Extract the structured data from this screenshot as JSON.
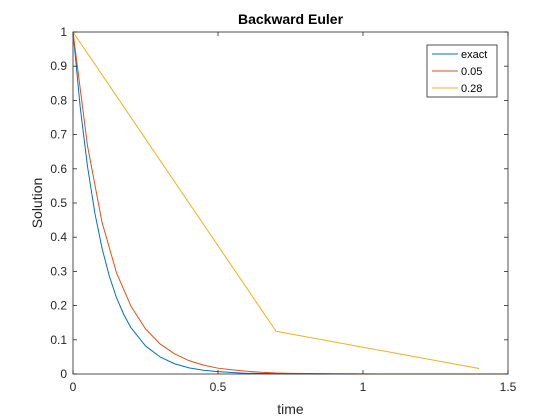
{
  "chart_data": {
    "type": "line",
    "title": "Backward Euler",
    "xlabel": "time",
    "ylabel": "Solution",
    "xlim": [
      0,
      1.5
    ],
    "ylim": [
      0,
      1
    ],
    "xticks": [
      0,
      0.5,
      1,
      1.5
    ],
    "xtick_labels": [
      "0",
      "0.5",
      "1",
      "1.5"
    ],
    "yticks": [
      0,
      0.1,
      0.2,
      0.3,
      0.4,
      0.5,
      0.6,
      0.7,
      0.8,
      0.9,
      1
    ],
    "ytick_labels": [
      "0",
      "0.1",
      "0.2",
      "0.3",
      "0.4",
      "0.5",
      "0.6",
      "0.7",
      "0.8",
      "0.9",
      "1"
    ],
    "grid": false,
    "legend_position": "top-right",
    "series": [
      {
        "name": "exact",
        "color": "#0072BD",
        "x": [
          0,
          0.025,
          0.05,
          0.075,
          0.1,
          0.125,
          0.15,
          0.175,
          0.2,
          0.25,
          0.3,
          0.35,
          0.4,
          0.45,
          0.5,
          0.6,
          0.7,
          0.8,
          1.0,
          1.2,
          1.4,
          1.5
        ],
        "y": [
          1,
          0.779,
          0.607,
          0.472,
          0.368,
          0.287,
          0.223,
          0.174,
          0.135,
          0.082,
          0.05,
          0.03,
          0.018,
          0.011,
          0.007,
          0.002,
          0.001,
          0.0003,
          2e-05,
          1e-06,
          0,
          0
        ]
      },
      {
        "name": "0.05",
        "color": "#D95319",
        "x": [
          0,
          0.05,
          0.1,
          0.15,
          0.2,
          0.25,
          0.3,
          0.35,
          0.4,
          0.45,
          0.5,
          0.55,
          0.6,
          0.65,
          0.7,
          0.75,
          0.8,
          0.85,
          0.9,
          1.0,
          1.1,
          1.2,
          1.3,
          1.4,
          1.5
        ],
        "y": [
          1,
          0.667,
          0.444,
          0.296,
          0.198,
          0.132,
          0.088,
          0.059,
          0.039,
          0.026,
          0.017,
          0.012,
          0.008,
          0.005,
          0.003,
          0.002,
          0.0015,
          0.001,
          0.0007,
          0.0003,
          0.0001,
          5e-05,
          2e-05,
          1e-05,
          0
        ]
      },
      {
        "name": "0.28",
        "color": "#EDB120",
        "x": [
          0,
          0.7,
          1.4
        ],
        "y": [
          1,
          0.125,
          0.016
        ]
      }
    ]
  }
}
